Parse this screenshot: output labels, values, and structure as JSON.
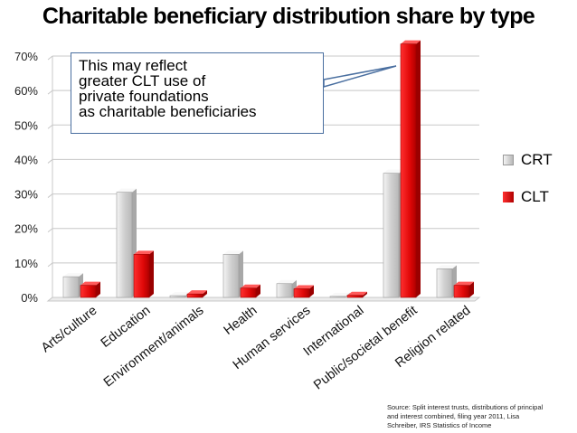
{
  "chart_data": {
    "type": "bar",
    "title": "Charitable beneficiary distribution share by type",
    "categories": [
      "Arts/culture",
      "Education",
      "Environment/animals",
      "Health",
      "Human services",
      "International",
      "Public/societal benefit",
      "Religion related"
    ],
    "series": [
      {
        "name": "CRT",
        "values": [
          6,
          30.5,
          0.5,
          12.5,
          4,
          0.3,
          36,
          8.3
        ],
        "color": "#d8d8d8"
      },
      {
        "name": "CLT",
        "values": [
          3.5,
          12.5,
          1,
          2.7,
          2.5,
          0.6,
          73.5,
          3.5
        ],
        "color": "#e51010"
      }
    ],
    "y_ticks": [
      "0%",
      "10%",
      "20%",
      "30%",
      "40%",
      "50%",
      "60%",
      "70%"
    ],
    "ylim": [
      0,
      70
    ],
    "grid": true,
    "legend": "right",
    "annotation": [
      "This may reflect",
      "greater CLT use of",
      "private foundations",
      "as charitable beneficiaries"
    ],
    "source": [
      "Source: Split interest trusts, distributions of principal",
      "and interest combined, filing year 2011, Lisa",
      "Schreiber, IRS Statistics of Income"
    ]
  }
}
